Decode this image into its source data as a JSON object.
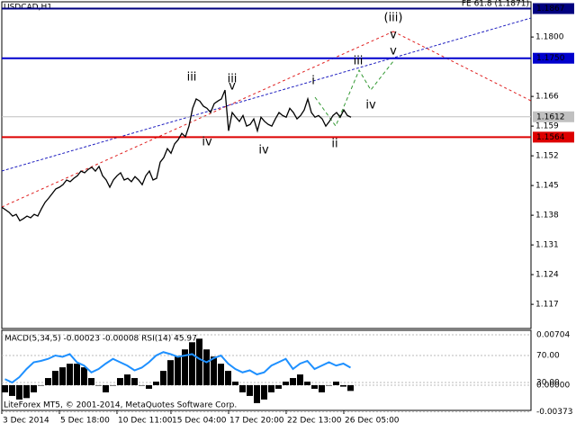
{
  "chart_data": [
    {
      "type": "line",
      "title": "USDCAD,H1",
      "subtitle": "FE 61.8 (1.1871)",
      "footer": "LiteForex MT5, © 2001-2014, MetaQuotes Software Corp.",
      "color": "#000000",
      "categories": [
        "3 Dec 2014",
        null,
        null,
        null,
        null,
        null,
        null,
        null,
        null,
        null,
        null,
        null,
        null,
        null,
        null,
        null,
        "5 Dec 18:00",
        null,
        null,
        null,
        null,
        null,
        null,
        null,
        null,
        null,
        null,
        null,
        null,
        null,
        null,
        null,
        "10 Dec 11:00",
        null,
        null,
        null,
        null,
        null,
        null,
        null,
        null,
        null,
        null,
        null,
        null,
        null,
        null,
        "15 Dec 04:00",
        null,
        null,
        null,
        null,
        null,
        null,
        null,
        null,
        null,
        null,
        null,
        null,
        null,
        null,
        null,
        "17 Dec 20:00",
        null,
        null,
        null,
        null,
        null,
        null,
        null,
        null,
        null,
        null,
        null,
        null,
        null,
        null,
        null,
        "22 Dec 13:00",
        null,
        null,
        null,
        null,
        null,
        null,
        null,
        null,
        null,
        null,
        null,
        null,
        null,
        null,
        null,
        "26 Dec 05:00",
        null,
        null
      ],
      "values": [
        1.1399,
        1.1393,
        1.1387,
        1.1378,
        1.1382,
        1.1367,
        1.1372,
        1.1378,
        1.1374,
        1.1382,
        1.1378,
        1.1395,
        1.141,
        1.142,
        1.1431,
        1.1442,
        1.1446,
        1.1452,
        1.1463,
        1.1459,
        1.1467,
        1.1473,
        1.1484,
        1.148,
        1.1488,
        1.1493,
        1.1484,
        1.1495,
        1.1473,
        1.1463,
        1.1446,
        1.1463,
        1.1473,
        1.148,
        1.1463,
        1.1467,
        1.1459,
        1.1471,
        1.1463,
        1.1452,
        1.1473,
        1.1484,
        1.1463,
        1.1467,
        1.1505,
        1.1516,
        1.1537,
        1.1526,
        1.1548,
        1.1558,
        1.1573,
        1.1565,
        1.159,
        1.1632,
        1.1654,
        1.1649,
        1.1637,
        1.1632,
        1.1622,
        1.1643,
        1.1649,
        1.1654,
        1.1675,
        1.1579,
        1.1622,
        1.1611,
        1.1601,
        1.1615,
        1.159,
        1.1594,
        1.1607,
        1.1579,
        1.1611,
        1.1601,
        1.1594,
        1.159,
        1.1607,
        1.1622,
        1.1615,
        1.1611,
        1.1632,
        1.1622,
        1.1607,
        1.1615,
        1.1628,
        1.1654,
        1.1622,
        1.1611,
        1.1615,
        1.1607,
        1.159,
        1.1601,
        1.1615,
        1.1622,
        1.1611,
        1.1628,
        1.1615,
        1.1611
      ],
      "ylim": [
        1.1113,
        1.1883
      ],
      "yticks": [
        1.117,
        1.124,
        1.131,
        1.138,
        1.145,
        1.152,
        1.159,
        1.166,
        {
          "value": 1.18,
          "label": "1.1800"
        }
      ],
      "levels": [
        {
          "value": 1.1867,
          "label": "1.1867",
          "color": "#000080"
        },
        {
          "value": 1.175,
          "label": "1.1750",
          "color": "#0000cd"
        },
        {
          "value": 1.1612,
          "label": "1.1612",
          "color": "#c0c0c0"
        },
        {
          "value": 1.1564,
          "label": "1.1564",
          "color": "#dd0000"
        }
      ],
      "annotations": [
        {
          "text": "(iii)",
          "color": "#e02020"
        },
        {
          "text": "v",
          "color": "#808080"
        },
        {
          "text": "iii",
          "color": "#339933"
        },
        {
          "text": "iii",
          "color": "#808080"
        },
        {
          "text": "v",
          "color": "#339933"
        },
        {
          "text": "i",
          "color": "#339933"
        },
        {
          "text": "iii",
          "color": "#339933"
        },
        {
          "text": "v",
          "color": "#339933"
        },
        {
          "text": "iv",
          "color": "#339933"
        },
        {
          "text": "iv",
          "color": "#339933"
        },
        {
          "text": "iv",
          "color": "#808080"
        },
        {
          "text": "ii",
          "color": "#339933"
        }
      ]
    },
    {
      "type": "bar",
      "title": "MACD(5,34,5) -0.00023 -0.00008 RSI(14) 45.97",
      "ylim": [
        -0.00352,
        0.00767
      ],
      "yticks": [
        0.00704,
        {
          "value": 0,
          "label": "0.00000"
        },
        -0.00373
      ],
      "y2lim": [
        -11.3,
        107.3
      ],
      "y2ticks": [
        {
          "value": 70,
          "label": "70.00"
        },
        {
          "value": 30,
          "label": "30.00"
        }
      ],
      "series": [
        {
          "color": "#000000",
          "values": [
            -0.001,
            -0.0015,
            -0.002,
            -0.0018,
            -0.001,
            0,
            0.001,
            0.002,
            0.0025,
            0.003,
            0.003,
            0.0025,
            0.001,
            0,
            -0.001,
            0,
            0.001,
            0.0015,
            0.001,
            0,
            -0.0005,
            0.0005,
            0.002,
            0.0035,
            0.004,
            0.005,
            0.006,
            0.0065,
            0.005,
            0.004,
            0.003,
            0.002,
            0.0005,
            -0.001,
            -0.0015,
            -0.0025,
            -0.002,
            -0.001,
            -0.0005,
            0.0005,
            0.001,
            0.0015,
            0.0005,
            -0.0005,
            -0.001,
            0,
            0.0005,
            -0.0002,
            -0.0008
          ]
        },
        {
          "color": "#1e90ff",
          "axis": "y2",
          "values": [
            35,
            30,
            38,
            50,
            60,
            62,
            65,
            70,
            68,
            72,
            60,
            55,
            45,
            50,
            58,
            65,
            60,
            55,
            48,
            52,
            60,
            70,
            75,
            72,
            68,
            70,
            72,
            65,
            60,
            66,
            70,
            58,
            50,
            45,
            48,
            42,
            45,
            55,
            60,
            65,
            50,
            58,
            62,
            50,
            55,
            60,
            55,
            58,
            52
          ]
        }
      ]
    }
  ]
}
